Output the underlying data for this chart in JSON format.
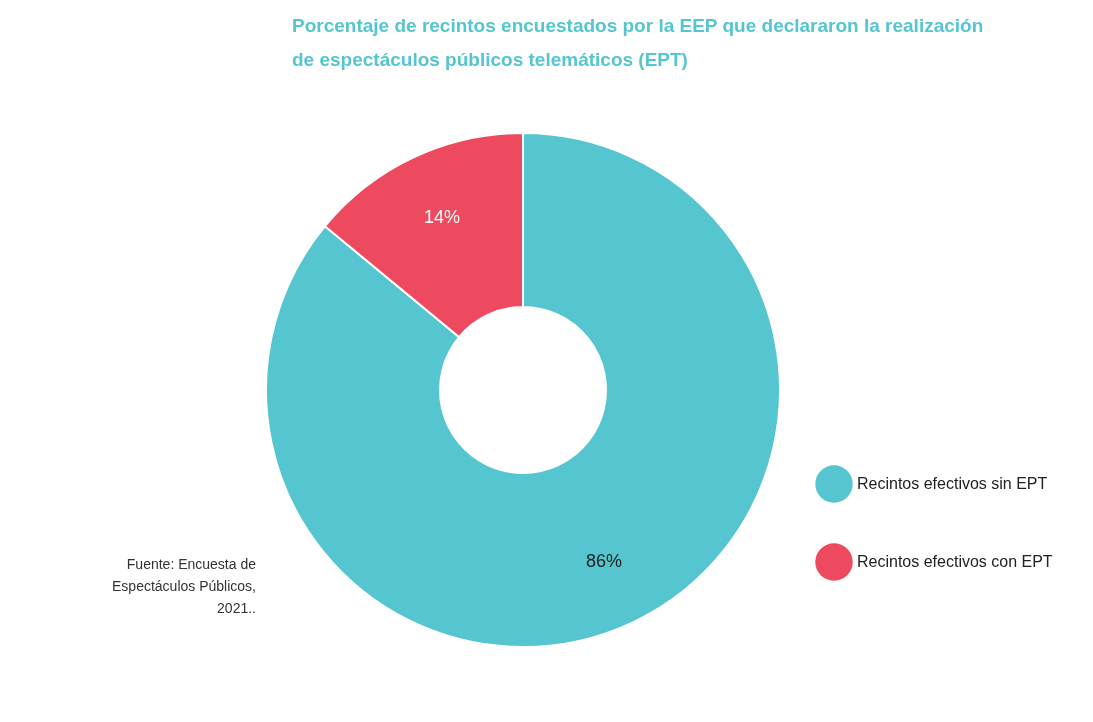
{
  "chart_data": {
    "type": "donut",
    "title": "Porcentaje de recintos encuestados por la EEP que declararon la realización de espectáculos públicos telemáticos (EPT)",
    "categories": [
      "Recintos efectivos sin EPT",
      "Recintos efectivos con EPT"
    ],
    "values": [
      86,
      14
    ],
    "colors": [
      "#55c5cf",
      "#ee4a5f"
    ],
    "value_labels": [
      "86%",
      "14%"
    ],
    "legend": "right",
    "annotations": [
      "Fuente: Encuesta de Espectáculos Públicos, 2021.."
    ]
  }
}
